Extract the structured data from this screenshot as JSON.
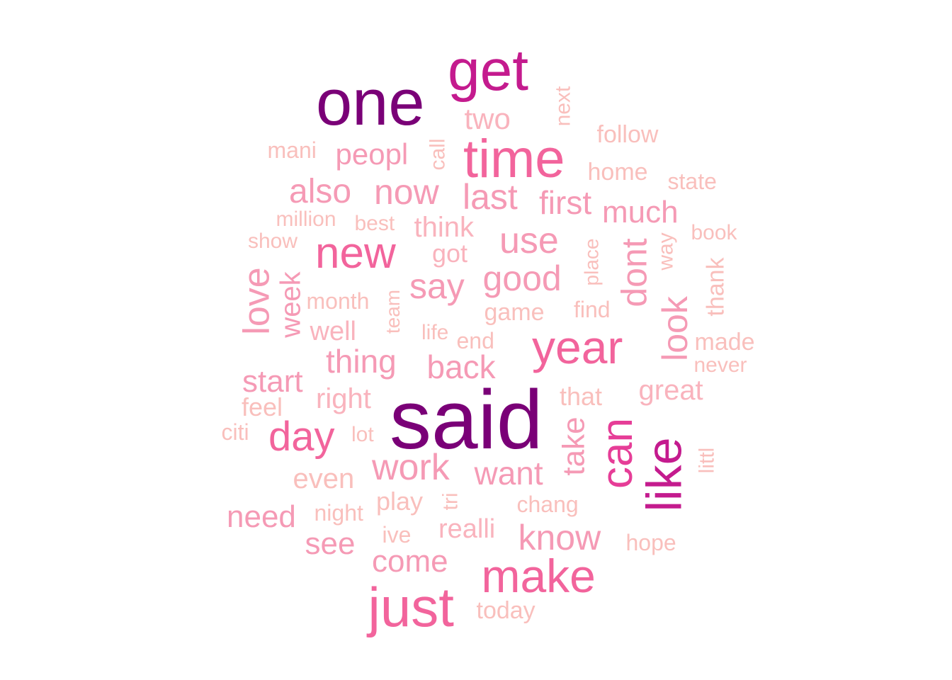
{
  "palette": {
    "tier1": "#7a0077",
    "tier2": "#c41b8e",
    "tier3": "#f2649c",
    "tier4": "#f59ab5",
    "tier5": "#f9bfbc"
  },
  "words": [
    {
      "text": "said",
      "color": "#7a0077"
    },
    {
      "text": "one",
      "color": "#7a0077"
    },
    {
      "text": "get",
      "color": "#c41b8e"
    },
    {
      "text": "like",
      "color": "#c41b8e"
    },
    {
      "text": "can",
      "color": "#e63d97"
    },
    {
      "text": "time",
      "color": "#f2649c"
    },
    {
      "text": "year",
      "color": "#f2649c"
    },
    {
      "text": "just",
      "color": "#f2649c"
    },
    {
      "text": "make",
      "color": "#f2649c"
    },
    {
      "text": "new",
      "color": "#f2649c"
    },
    {
      "text": "day",
      "color": "#f2649c"
    },
    {
      "text": "two",
      "color": "#f9b3bd"
    },
    {
      "text": "next",
      "color": "#f9bfbc"
    },
    {
      "text": "follow",
      "color": "#f9bfbc"
    },
    {
      "text": "mani",
      "color": "#f9bfbc"
    },
    {
      "text": "peopl",
      "color": "#f59ab5"
    },
    {
      "text": "call",
      "color": "#f9bfbc"
    },
    {
      "text": "home",
      "color": "#f9bfbc"
    },
    {
      "text": "state",
      "color": "#f9bfbc"
    },
    {
      "text": "also",
      "color": "#f59ab5"
    },
    {
      "text": "now",
      "color": "#f59ab5"
    },
    {
      "text": "last",
      "color": "#f59ab5"
    },
    {
      "text": "first",
      "color": "#f59ab5"
    },
    {
      "text": "much",
      "color": "#f59ab5"
    },
    {
      "text": "million",
      "color": "#f9bfbc"
    },
    {
      "text": "best",
      "color": "#f9bfbc"
    },
    {
      "text": "think",
      "color": "#f9b3bd"
    },
    {
      "text": "show",
      "color": "#f9bfbc"
    },
    {
      "text": "use",
      "color": "#f59ab5"
    },
    {
      "text": "book",
      "color": "#f9bfbc"
    },
    {
      "text": "got",
      "color": "#f9b3bd"
    },
    {
      "text": "place",
      "color": "#f9bfbc"
    },
    {
      "text": "dont",
      "color": "#f59ab5"
    },
    {
      "text": "way",
      "color": "#f9bfbc"
    },
    {
      "text": "love",
      "color": "#f59ab5"
    },
    {
      "text": "week",
      "color": "#f59ab5"
    },
    {
      "text": "say",
      "color": "#f59ab5"
    },
    {
      "text": "good",
      "color": "#f59ab5"
    },
    {
      "text": "thank",
      "color": "#f9bfbc"
    },
    {
      "text": "month",
      "color": "#f9bfbc"
    },
    {
      "text": "team",
      "color": "#f9bfbc"
    },
    {
      "text": "game",
      "color": "#f9bfbc"
    },
    {
      "text": "find",
      "color": "#f9bfbc"
    },
    {
      "text": "look",
      "color": "#f59ab5"
    },
    {
      "text": "well",
      "color": "#f9b3bd"
    },
    {
      "text": "life",
      "color": "#f9bfbc"
    },
    {
      "text": "end",
      "color": "#f9bfbc"
    },
    {
      "text": "made",
      "color": "#f9bfbc"
    },
    {
      "text": "thing",
      "color": "#f59ab5"
    },
    {
      "text": "back",
      "color": "#f59ab5"
    },
    {
      "text": "never",
      "color": "#f9bfbc"
    },
    {
      "text": "start",
      "color": "#f59ab5"
    },
    {
      "text": "great",
      "color": "#f9b3bd"
    },
    {
      "text": "that",
      "color": "#f9bfbc"
    },
    {
      "text": "right",
      "color": "#f9b3bd"
    },
    {
      "text": "feel",
      "color": "#f9bfbc"
    },
    {
      "text": "citi",
      "color": "#f9bfbc"
    },
    {
      "text": "lot",
      "color": "#f9bfbc"
    },
    {
      "text": "take",
      "color": "#f59ab5"
    },
    {
      "text": "littl",
      "color": "#f9bfbc"
    },
    {
      "text": "work",
      "color": "#f59ab5"
    },
    {
      "text": "want",
      "color": "#f59ab5"
    },
    {
      "text": "even",
      "color": "#f9bfbc"
    },
    {
      "text": "play",
      "color": "#f9bfbc"
    },
    {
      "text": "tri",
      "color": "#f9bfbc"
    },
    {
      "text": "chang",
      "color": "#f9bfbc"
    },
    {
      "text": "need",
      "color": "#f59ab5"
    },
    {
      "text": "night",
      "color": "#f9bfbc"
    },
    {
      "text": "ive",
      "color": "#f9bfbc"
    },
    {
      "text": "realli",
      "color": "#f9b3bd"
    },
    {
      "text": "know",
      "color": "#f59ab5"
    },
    {
      "text": "hope",
      "color": "#f9bfbc"
    },
    {
      "text": "see",
      "color": "#f59ab5"
    },
    {
      "text": "come",
      "color": "#f59ab5"
    },
    {
      "text": "today",
      "color": "#f9bfbc"
    }
  ]
}
